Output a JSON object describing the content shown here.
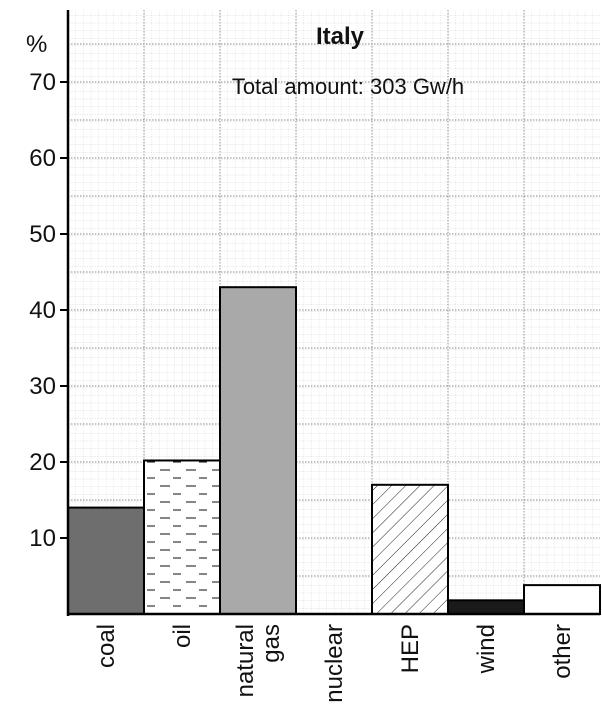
{
  "chart_data": {
    "type": "bar",
    "title": "Italy",
    "subtitle": "Total amount: 303 Gw/h",
    "ylabel": "%",
    "xlabel": "",
    "ylim": [
      0,
      78
    ],
    "yticks": [
      10,
      20,
      30,
      40,
      50,
      60,
      70
    ],
    "grid": true,
    "categories": [
      "coal",
      "oil",
      "natural gas",
      "nuclear",
      "HEP",
      "wind",
      "other"
    ],
    "category_lines": [
      [
        "coal"
      ],
      [
        "oil"
      ],
      [
        "natural",
        "gas"
      ],
      [
        "nuclear"
      ],
      [
        "HEP"
      ],
      [
        "wind"
      ],
      [
        "other"
      ]
    ],
    "values": [
      14,
      20.2,
      43,
      0,
      17,
      1.8,
      3.8
    ],
    "bar_fills": [
      "solid-dark-gray",
      "dashed-lines",
      "solid-light-gray",
      "none",
      "diagonal-hatch",
      "solid-black",
      "white"
    ],
    "colors": {
      "coal": "#6e6e6e",
      "natural_gas": "#a9a9a9",
      "wind": "#1a1a1a",
      "grid": "#b8b8b8"
    }
  }
}
